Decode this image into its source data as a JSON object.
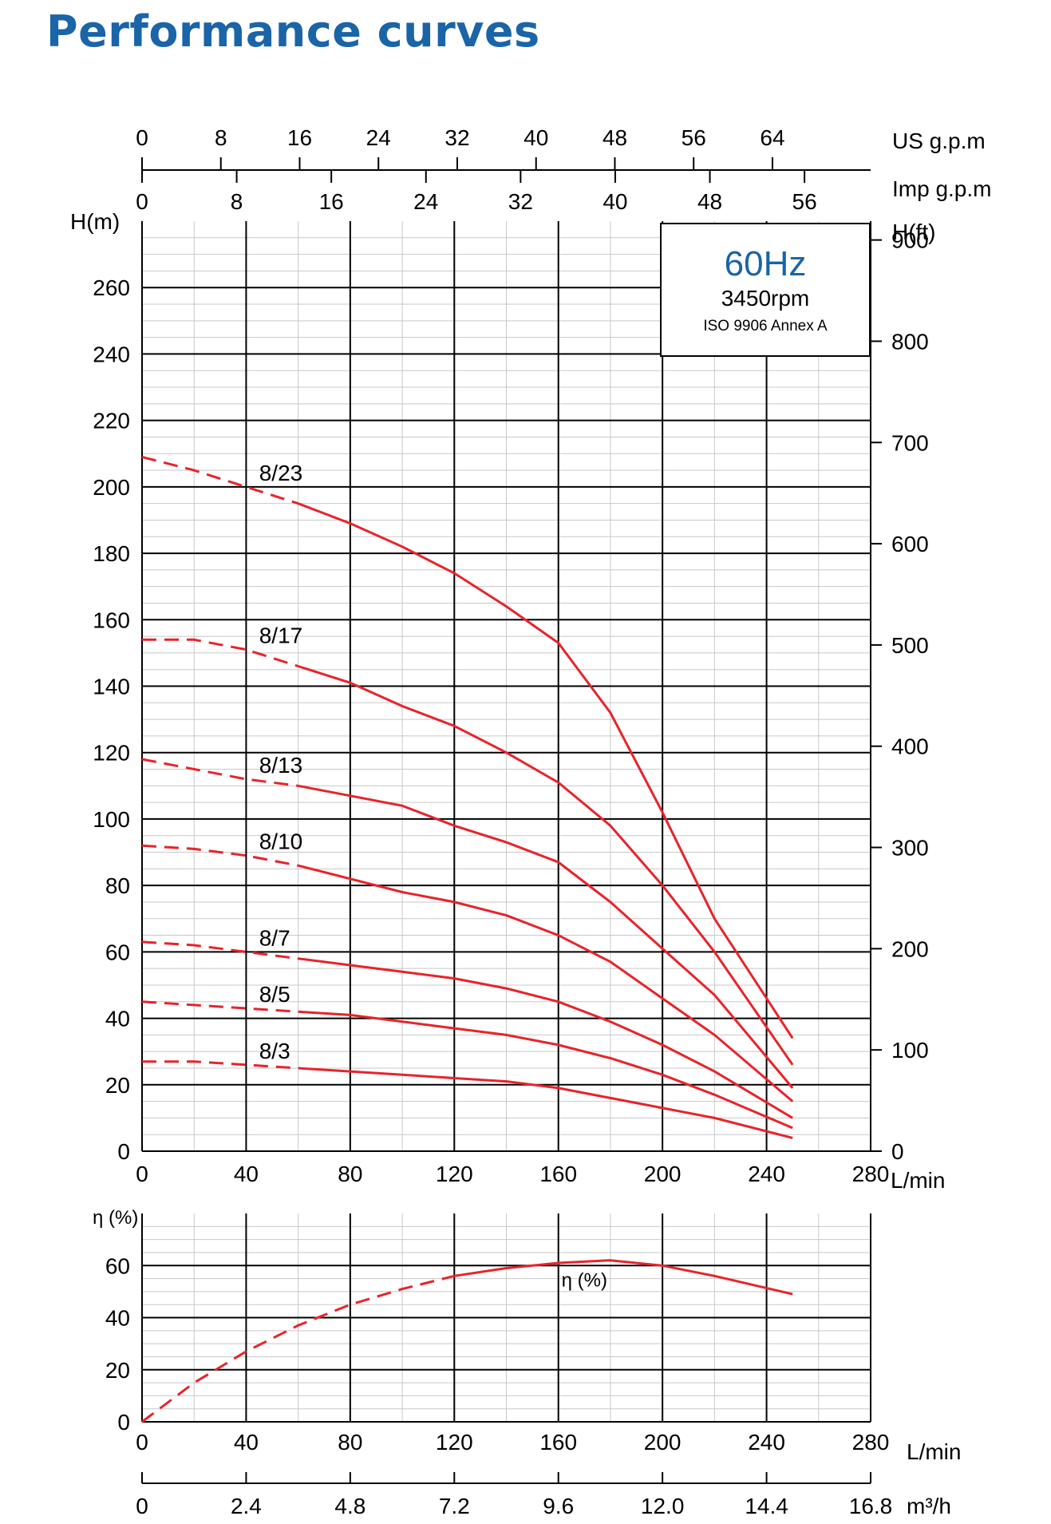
{
  "page": {
    "title": "Performance curves"
  },
  "chart_data": [
    {
      "type": "line",
      "title": "",
      "x": {
        "label": "L/min",
        "range": [
          0,
          280
        ],
        "ticks": [
          0,
          40,
          80,
          120,
          160,
          200,
          240,
          280
        ]
      },
      "y": {
        "label": "H(m)",
        "range": [
          0,
          280
        ],
        "ticks": [
          0,
          20,
          40,
          60,
          80,
          100,
          120,
          140,
          160,
          180,
          200,
          220,
          240,
          260
        ]
      },
      "y2": {
        "label": "H(ft)",
        "ticks": [
          0,
          100,
          200,
          300,
          400,
          500,
          600,
          700,
          800,
          900
        ]
      },
      "x2_top": {
        "label": "US g.p.m",
        "ticks": [
          0,
          8,
          16,
          24,
          32,
          40,
          48,
          56,
          64
        ]
      },
      "x3_top": {
        "label": "Imp g.p.m",
        "ticks": [
          0,
          8,
          16,
          24,
          32,
          40,
          48,
          56
        ]
      },
      "grid": true,
      "annotation": {
        "frequency": "60Hz",
        "speed": "3450rpm",
        "standard": "ISO 9906 Annex A"
      },
      "dashed_until_x": 60,
      "series": [
        {
          "name": "8/23",
          "x": [
            0,
            20,
            40,
            60,
            80,
            100,
            120,
            140,
            160,
            180,
            200,
            220,
            250
          ],
          "y": [
            209,
            205,
            200,
            195,
            189,
            182,
            174,
            164,
            153,
            132,
            102,
            70,
            34
          ]
        },
        {
          "name": "8/17",
          "x": [
            0,
            20,
            40,
            60,
            80,
            100,
            120,
            140,
            160,
            180,
            200,
            220,
            250
          ],
          "y": [
            154,
            154,
            151,
            146,
            141,
            134,
            128,
            120,
            111,
            98,
            80,
            60,
            26
          ]
        },
        {
          "name": "8/13",
          "x": [
            0,
            20,
            40,
            60,
            80,
            100,
            120,
            140,
            160,
            180,
            200,
            220,
            250
          ],
          "y": [
            118,
            115,
            112,
            110,
            107,
            104,
            98,
            93,
            87,
            75,
            61,
            47,
            19
          ]
        },
        {
          "name": "8/10",
          "x": [
            0,
            20,
            40,
            60,
            80,
            100,
            120,
            140,
            160,
            180,
            200,
            220,
            250
          ],
          "y": [
            92,
            91,
            89,
            86,
            82,
            78,
            75,
            71,
            65,
            57,
            46,
            35,
            15
          ]
        },
        {
          "name": "8/7",
          "x": [
            0,
            20,
            40,
            60,
            80,
            100,
            120,
            140,
            160,
            180,
            200,
            220,
            250
          ],
          "y": [
            63,
            62,
            60,
            58,
            56,
            54,
            52,
            49,
            45,
            39,
            32,
            24,
            10
          ]
        },
        {
          "name": "8/5",
          "x": [
            0,
            20,
            40,
            60,
            80,
            100,
            120,
            140,
            160,
            180,
            200,
            220,
            250
          ],
          "y": [
            45,
            44,
            43,
            42,
            41,
            39,
            37,
            35,
            32,
            28,
            23,
            17,
            7
          ]
        },
        {
          "name": "8/3",
          "x": [
            0,
            20,
            40,
            60,
            80,
            100,
            120,
            140,
            160,
            180,
            200,
            220,
            250
          ],
          "y": [
            27,
            27,
            26,
            25,
            24,
            23,
            22,
            21,
            19,
            16,
            13,
            10,
            4
          ]
        }
      ]
    },
    {
      "type": "line",
      "title": "",
      "x": {
        "label": "L/min",
        "range": [
          0,
          280
        ],
        "ticks": [
          0,
          40,
          80,
          120,
          160,
          200,
          240,
          280
        ]
      },
      "x2_bottom": {
        "label": "m³/h",
        "ticks": [
          "0",
          "2.4",
          "4.8",
          "7.2",
          "9.6",
          "12.0",
          "14.4",
          "16.8"
        ]
      },
      "y": {
        "label": "η (%)",
        "range": [
          0,
          80
        ],
        "ticks": [
          0,
          20,
          40,
          60
        ]
      },
      "grid": true,
      "dashed_until_x": 120,
      "series": [
        {
          "name": "η (%)",
          "x": [
            0,
            20,
            40,
            60,
            80,
            100,
            120,
            140,
            160,
            180,
            200,
            220,
            250
          ],
          "y": [
            0,
            15,
            27,
            37,
            45,
            51,
            56,
            59,
            61,
            62,
            60,
            56,
            49
          ]
        }
      ]
    }
  ]
}
